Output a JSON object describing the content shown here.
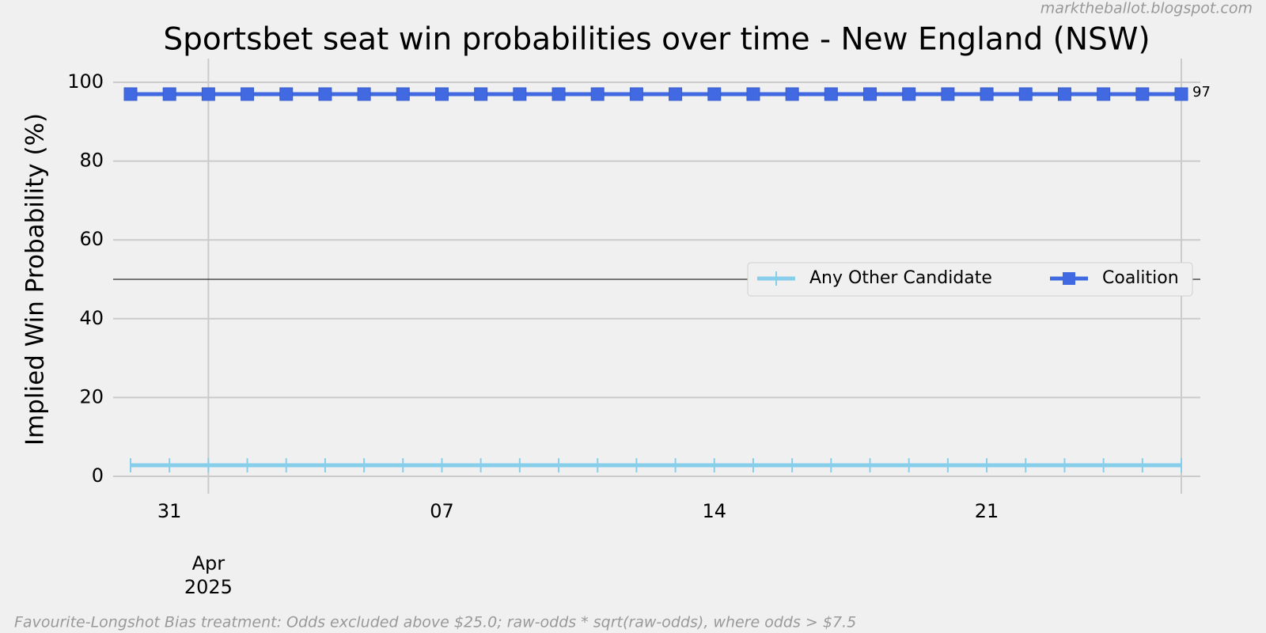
{
  "chart_data": {
    "type": "line",
    "title": "Sportsbet seat win probabilities over time - New England (NSW)",
    "ylabel": "Implied Win Probability (%)",
    "watermark": "marktheballot.blogspot.com",
    "footnote": "Favourite-Longshot Bias treatment: Odds excluded above $25.0; raw-odds * sqrt(raw-odds), where odds > $7.5",
    "x": [
      "2025-03-30",
      "2025-03-31",
      "2025-04-01",
      "2025-04-02",
      "2025-04-03",
      "2025-04-04",
      "2025-04-05",
      "2025-04-06",
      "2025-04-07",
      "2025-04-08",
      "2025-04-09",
      "2025-04-10",
      "2025-04-11",
      "2025-04-12",
      "2025-04-13",
      "2025-04-14",
      "2025-04-15",
      "2025-04-16",
      "2025-04-17",
      "2025-04-18",
      "2025-04-19",
      "2025-04-20",
      "2025-04-21",
      "2025-04-22",
      "2025-04-23",
      "2025-04-24",
      "2025-04-25",
      "2025-04-26"
    ],
    "series": [
      {
        "name": "Any Other Candidate",
        "color": "#87ceeb",
        "marker": "vline",
        "values": [
          2.8,
          2.8,
          2.8,
          2.8,
          2.8,
          2.8,
          2.8,
          2.8,
          2.8,
          2.8,
          2.8,
          2.8,
          2.8,
          2.8,
          2.8,
          2.8,
          2.8,
          2.8,
          2.8,
          2.8,
          2.8,
          2.8,
          2.8,
          2.8,
          2.8,
          2.8,
          2.8,
          2.8
        ]
      },
      {
        "name": "Coalition",
        "color": "#4169e1",
        "marker": "square",
        "end_label": true,
        "values": [
          97,
          97,
          97,
          97,
          97,
          97,
          97,
          97,
          97,
          97,
          97,
          97,
          97,
          97,
          97,
          97,
          97,
          97,
          97,
          97,
          97,
          97,
          97,
          97,
          97,
          97,
          97,
          97
        ]
      }
    ],
    "xlim": [
      "2025-03-30",
      "2025-04-26"
    ],
    "xticks": [
      {
        "value": "2025-03-31",
        "label": "31"
      },
      {
        "value": "2025-04-01",
        "label": "Apr\n2025"
      },
      {
        "value": "2025-04-07",
        "label": "07"
      },
      {
        "value": "2025-04-14",
        "label": "14"
      },
      {
        "value": "2025-04-21",
        "label": "21"
      }
    ],
    "ylim": [
      0,
      100
    ],
    "yticks": [
      0,
      20,
      40,
      60,
      80,
      100
    ],
    "hline": 50,
    "grid": true,
    "legend": "right"
  }
}
